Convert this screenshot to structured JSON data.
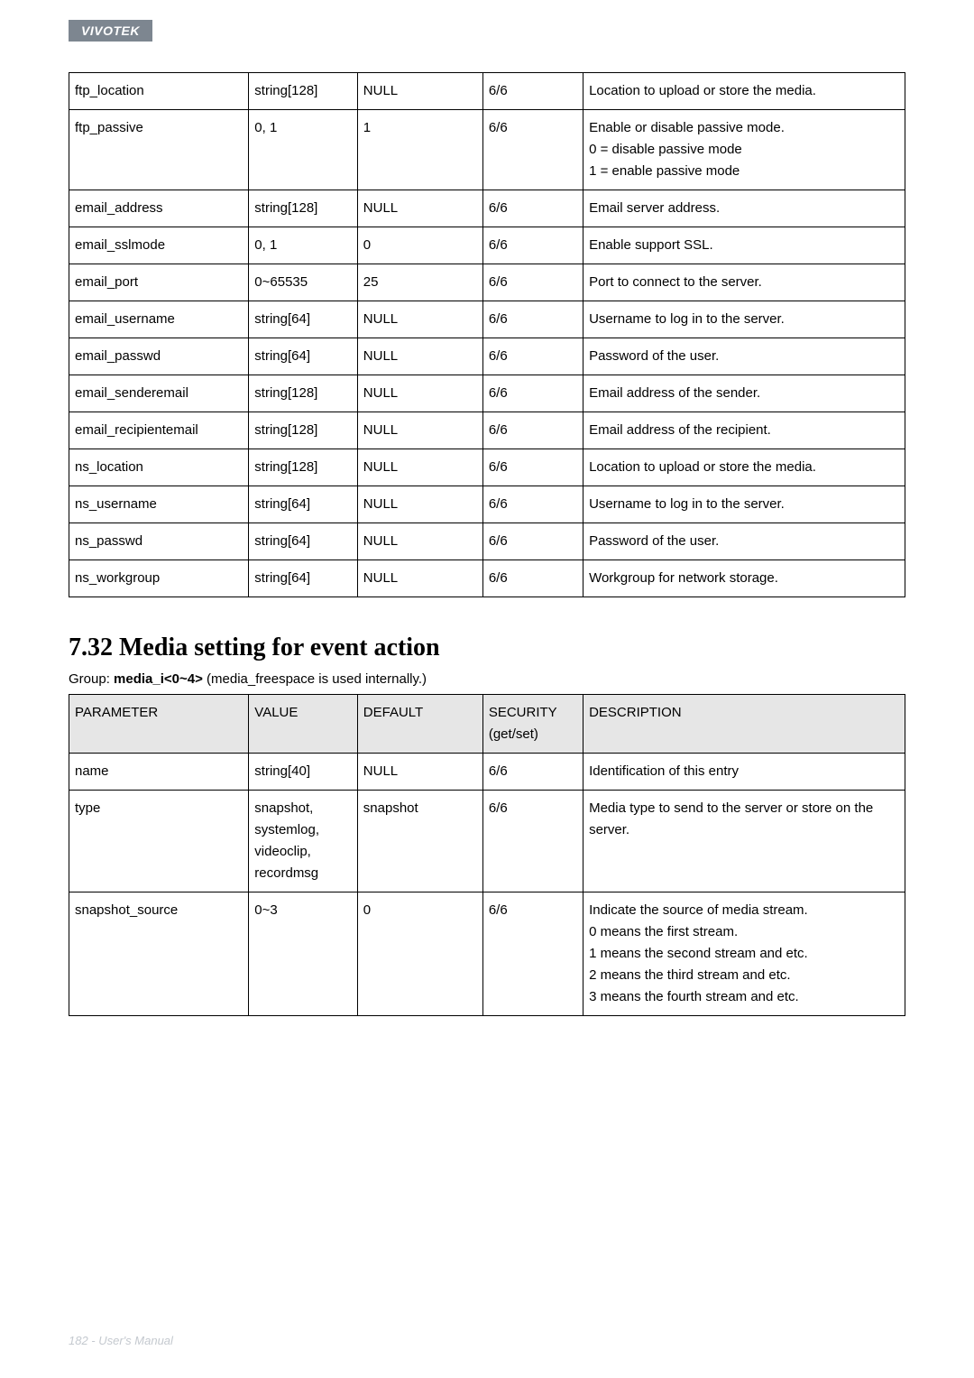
{
  "header": {
    "brand": "VIVOTEK"
  },
  "table1": {
    "rows": [
      {
        "param": "ftp_location",
        "value": "string[128]",
        "default": "NULL",
        "security": "6/6",
        "desc": "Location to upload or store the media."
      },
      {
        "param": "ftp_passive",
        "value": "0, 1",
        "default": "1",
        "security": "6/6",
        "desc": "Enable or disable passive mode.\n0 = disable passive mode\n1 = enable passive mode"
      },
      {
        "param": "email_address",
        "value": "string[128]",
        "default": "NULL",
        "security": "6/6",
        "desc": "Email server address."
      },
      {
        "param": "email_sslmode",
        "value": "0, 1",
        "default": "0",
        "security": "6/6",
        "desc": "Enable support SSL."
      },
      {
        "param": "email_port",
        "value": "0~65535",
        "default": "25",
        "security": "6/6",
        "desc": "Port to connect to the server."
      },
      {
        "param": "email_username",
        "value": "string[64]",
        "default": "NULL",
        "security": "6/6",
        "desc": "Username to log in to the server."
      },
      {
        "param": "email_passwd",
        "value": "string[64]",
        "default": "NULL",
        "security": "6/6",
        "desc": "Password of the user."
      },
      {
        "param": "email_senderemail",
        "value": "string[128]",
        "default": "NULL",
        "security": "6/6",
        "desc": "Email address of the sender."
      },
      {
        "param": "email_recipientemail",
        "value": "string[128]",
        "default": "NULL",
        "security": "6/6",
        "desc": "Email address of the recipient."
      },
      {
        "param": "ns_location",
        "value": "string[128]",
        "default": "NULL",
        "security": "6/6",
        "desc": "Location to upload or store the media."
      },
      {
        "param": "ns_username",
        "value": "string[64]",
        "default": "NULL",
        "security": "6/6",
        "desc": "Username to log in to the server."
      },
      {
        "param": "ns_passwd",
        "value": "string[64]",
        "default": "NULL",
        "security": "6/6",
        "desc": "Password of the user."
      },
      {
        "param": "ns_workgroup",
        "value": "string[64]",
        "default": "NULL",
        "security": "6/6",
        "desc": "Workgroup for network storage."
      }
    ]
  },
  "section": {
    "heading": "7.32 Media setting for event action",
    "group_prefix": "Group: ",
    "group_name": "media_i<0~4>",
    "group_suffix": " (media_freespace is used internally.)"
  },
  "table2": {
    "headers": {
      "param": "PARAMETER",
      "value": "VALUE",
      "default": "DEFAULT",
      "security": "SECURITY\n(get/set)",
      "desc": "DESCRIPTION"
    },
    "rows": [
      {
        "param": "name",
        "value": "string[40]",
        "default": "NULL",
        "security": "6/6",
        "desc": "Identification of this entry"
      },
      {
        "param": "type",
        "value": "snapshot,\nsystemlog,\nvideoclip,\nrecordmsg",
        "default": "snapshot",
        "security": "6/6",
        "desc": "Media type to send to the server or store on the server."
      },
      {
        "param": "snapshot_source",
        "value": "0~3",
        "default": "0",
        "security": "6/6",
        "desc": "Indicate the source of media stream.\n0 means the first stream.\n1 means the second stream and etc.\n2 means the third stream and etc.\n3 means the fourth stream and etc."
      }
    ]
  },
  "footer": {
    "text": "182 - User's Manual"
  }
}
